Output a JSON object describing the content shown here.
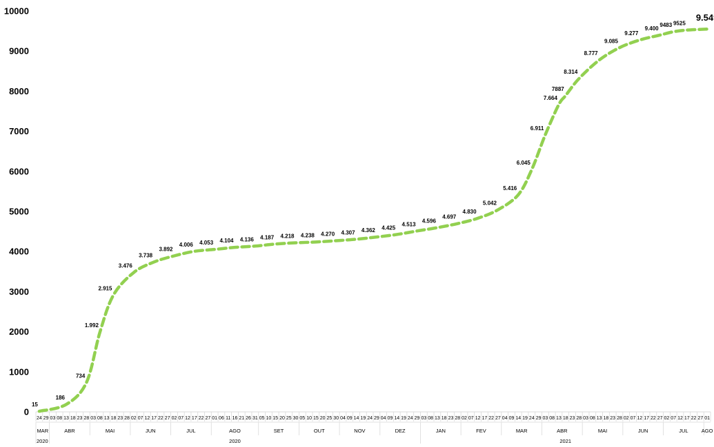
{
  "chart_data": {
    "type": "line",
    "title": "",
    "xlabel": "",
    "ylabel": "",
    "ylim": [
      0,
      10000
    ],
    "yticks": [
      "0",
      "1000",
      "2000",
      "3000",
      "4000",
      "5000",
      "6000",
      "7000",
      "8000",
      "9000",
      "10000"
    ],
    "grid": false,
    "legend": "none",
    "line_color": "#92d050",
    "line_style": "dashed",
    "points": [
      {
        "date": "2020-03-24",
        "value": 15,
        "label": "15"
      },
      {
        "date": "2020-04-13",
        "value": 186,
        "label": "186"
      },
      {
        "date": "2020-04-28",
        "value": 734,
        "label": "734"
      },
      {
        "date": "2020-05-08",
        "value": 1992,
        "label": "1.992"
      },
      {
        "date": "2020-05-18",
        "value": 2915,
        "label": "2.915"
      },
      {
        "date": "2020-06-02",
        "value": 3476,
        "label": "3.476"
      },
      {
        "date": "2020-06-17",
        "value": 3738,
        "label": "3.738"
      },
      {
        "date": "2020-07-02",
        "value": 3892,
        "label": "3.892"
      },
      {
        "date": "2020-07-17",
        "value": 4006,
        "label": "4.006"
      },
      {
        "date": "2020-08-01",
        "value": 4053,
        "label": "4.053"
      },
      {
        "date": "2020-08-16",
        "value": 4104,
        "label": "4.104"
      },
      {
        "date": "2020-08-31",
        "value": 4136,
        "label": "4.136"
      },
      {
        "date": "2020-09-15",
        "value": 4187,
        "label": "4.187"
      },
      {
        "date": "2020-09-30",
        "value": 4218,
        "label": "4.218"
      },
      {
        "date": "2020-10-15",
        "value": 4238,
        "label": "4.238"
      },
      {
        "date": "2020-10-30",
        "value": 4270,
        "label": "4.270"
      },
      {
        "date": "2020-11-14",
        "value": 4307,
        "label": "4.307"
      },
      {
        "date": "2020-11-29",
        "value": 4362,
        "label": "4.362"
      },
      {
        "date": "2020-12-14",
        "value": 4425,
        "label": "4.425"
      },
      {
        "date": "2020-12-29",
        "value": 4513,
        "label": "4.513"
      },
      {
        "date": "2021-01-13",
        "value": 4596,
        "label": "4.596"
      },
      {
        "date": "2021-01-28",
        "value": 4697,
        "label": "4.697"
      },
      {
        "date": "2021-02-12",
        "value": 4830,
        "label": "4.830"
      },
      {
        "date": "2021-02-27",
        "value": 5042,
        "label": "5.042"
      },
      {
        "date": "2021-03-14",
        "value": 5416,
        "label": "5.416"
      },
      {
        "date": "2021-03-24",
        "value": 6045,
        "label": "6.045"
      },
      {
        "date": "2021-04-03",
        "value": 6911,
        "label": "6.911"
      },
      {
        "date": "2021-04-13",
        "value": 7664,
        "label": "7.664"
      },
      {
        "date": "2021-04-18",
        "value": 7887,
        "label": "7887"
      },
      {
        "date": "2021-04-28",
        "value": 8314,
        "label": "8.314"
      },
      {
        "date": "2021-05-13",
        "value": 8777,
        "label": "8.777"
      },
      {
        "date": "2021-05-28",
        "value": 9085,
        "label": "9.085"
      },
      {
        "date": "2021-06-12",
        "value": 9277,
        "label": "9.277"
      },
      {
        "date": "2021-06-27",
        "value": 9400,
        "label": "9.400"
      },
      {
        "date": "2021-07-07",
        "value": 9483,
        "label": "9483"
      },
      {
        "date": "2021-07-17",
        "value": 9525,
        "label": "9525"
      },
      {
        "date": "2021-08-01",
        "value": 9549,
        "label": "9.549",
        "emphasis": true
      }
    ],
    "x_day_ticks": [
      "24",
      "29",
      "03",
      "08",
      "13",
      "18",
      "23",
      "28",
      "03",
      "08",
      "13",
      "18",
      "23",
      "28",
      "02",
      "07",
      "12",
      "17",
      "22",
      "27",
      "02",
      "07",
      "12",
      "17",
      "22",
      "27",
      "01",
      "06",
      "11",
      "16",
      "21",
      "26",
      "31",
      "05",
      "10",
      "15",
      "20",
      "25",
      "30",
      "05",
      "10",
      "15",
      "20",
      "25",
      "30",
      "04",
      "09",
      "14",
      "19",
      "24",
      "29",
      "04",
      "09",
      "14",
      "19",
      "24",
      "29",
      "03",
      "08",
      "13",
      "18",
      "23",
      "28",
      "02",
      "07",
      "12",
      "17",
      "22",
      "27",
      "04",
      "09",
      "14",
      "19",
      "24",
      "29",
      "03",
      "08",
      "13",
      "18",
      "23",
      "28",
      "03",
      "08",
      "13",
      "18",
      "23",
      "28",
      "02",
      "07",
      "12",
      "17",
      "22",
      "27",
      "02",
      "07",
      "12",
      "17",
      "22",
      "27",
      "01"
    ],
    "x_months": [
      {
        "label": "MAR",
        "start": 0,
        "end": 2
      },
      {
        "label": "ABR",
        "start": 2,
        "end": 8
      },
      {
        "label": "MAI",
        "start": 8,
        "end": 14
      },
      {
        "label": "JUN",
        "start": 14,
        "end": 20
      },
      {
        "label": "JUL",
        "start": 20,
        "end": 26
      },
      {
        "label": "AGO",
        "start": 26,
        "end": 33
      },
      {
        "label": "SET",
        "start": 33,
        "end": 39
      },
      {
        "label": "OUT",
        "start": 39,
        "end": 45
      },
      {
        "label": "NOV",
        "start": 45,
        "end": 51
      },
      {
        "label": "DEZ",
        "start": 51,
        "end": 57
      },
      {
        "label": "JAN",
        "start": 57,
        "end": 63
      },
      {
        "label": "FEV",
        "start": 63,
        "end": 69
      },
      {
        "label": "MAR",
        "start": 69,
        "end": 75
      },
      {
        "label": "ABR",
        "start": 75,
        "end": 81
      },
      {
        "label": "MAI",
        "start": 81,
        "end": 87
      },
      {
        "label": "JUN",
        "start": 87,
        "end": 93
      },
      {
        "label": "JUL",
        "start": 93,
        "end": 99
      },
      {
        "label": "AGO",
        "start": 99,
        "end": 100
      }
    ],
    "x_years": [
      {
        "label": "2020",
        "start": 0,
        "end": 2,
        "align": "left"
      },
      {
        "label": "2020",
        "start": 2,
        "end": 57,
        "align": "center"
      },
      {
        "label": "2021",
        "start": 57,
        "end": 100,
        "align": "center"
      }
    ]
  }
}
